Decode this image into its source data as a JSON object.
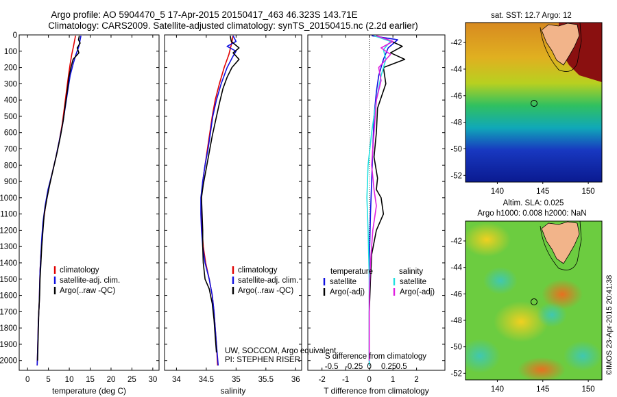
{
  "header": {
    "line1": "Argo profile: AO 5904470_5 17-Apr-2015 20150417_463 46.323S 143.71E",
    "line2": "Climatology: CARS2009. Satellite-adjusted climatology: synTS_20150415.nc (2.2d earlier)"
  },
  "colors": {
    "climatology": "#e00000",
    "satellite": "#1010e0",
    "argo": "#000000",
    "satellite_s": "#20e0e0",
    "argo_s": "#e020e0"
  },
  "footer": {
    "institution": "UW, SOCCOM, Argo equivalent",
    "pi": "PI: STEPHEN RISER",
    "stamp": "©IMOS 23-Apr-2015 20:41:38"
  },
  "chart_data": [
    {
      "type": "line",
      "id": "temperature",
      "xlabel": "temperature (deg C)",
      "ylabel": "",
      "xlim": [
        -2,
        31.5
      ],
      "ylim": [
        2060,
        0
      ],
      "xticks": [
        0,
        5,
        10,
        15,
        20,
        25,
        30
      ],
      "xticklabels": [
        "0",
        "5",
        "10",
        "15",
        "20",
        "25",
        "30"
      ],
      "yticks": [
        0,
        100,
        200,
        300,
        400,
        500,
        600,
        700,
        800,
        900,
        1000,
        1100,
        1200,
        1300,
        1400,
        1500,
        1600,
        1700,
        1800,
        1900,
        2000
      ],
      "legend": [
        "climatology",
        "satellite-adj. clim.",
        "Argo(..raw -QC)"
      ],
      "series": [
        {
          "name": "climatology",
          "color": "climatology",
          "points": [
            [
              11.5,
              5
            ],
            [
              11.3,
              30
            ],
            [
              11.0,
              70
            ],
            [
              10.6,
              120
            ],
            [
              10.2,
              180
            ],
            [
              9.8,
              250
            ],
            [
              9.3,
              350
            ],
            [
              8.8,
              450
            ],
            [
              8.3,
              550
            ],
            [
              7.6,
              650
            ],
            [
              6.8,
              750
            ],
            [
              5.9,
              850
            ],
            [
              5.0,
              950
            ],
            [
              4.3,
              1050
            ],
            [
              3.8,
              1150
            ],
            [
              3.5,
              1250
            ],
            [
              3.2,
              1350
            ],
            [
              3.0,
              1450
            ],
            [
              2.9,
              1550
            ],
            [
              2.8,
              1650
            ],
            [
              2.6,
              1750
            ],
            [
              2.5,
              1850
            ],
            [
              2.4,
              1950
            ],
            [
              2.3,
              2030
            ]
          ]
        },
        {
          "name": "satellite-adj. clim.",
          "color": "satellite",
          "points": [
            [
              12.8,
              5
            ],
            [
              12.6,
              30
            ],
            [
              12.3,
              70
            ],
            [
              11.6,
              120
            ],
            [
              10.9,
              180
            ],
            [
              10.2,
              250
            ],
            [
              9.6,
              350
            ],
            [
              9.0,
              450
            ],
            [
              8.4,
              550
            ],
            [
              7.6,
              650
            ],
            [
              6.8,
              750
            ],
            [
              5.9,
              850
            ],
            [
              4.9,
              950
            ],
            [
              4.2,
              1050
            ],
            [
              3.7,
              1150
            ],
            [
              3.4,
              1250
            ],
            [
              3.2,
              1350
            ],
            [
              3.0,
              1450
            ],
            [
              2.9,
              1550
            ],
            [
              2.8,
              1650
            ],
            [
              2.6,
              1750
            ],
            [
              2.5,
              1850
            ],
            [
              2.4,
              1950
            ],
            [
              2.3,
              2030
            ]
          ]
        },
        {
          "name": "Argo(..raw -QC)",
          "color": "argo",
          "points": [
            [
              12.4,
              5
            ],
            [
              12.2,
              30
            ],
            [
              12.6,
              50
            ],
            [
              11.9,
              80
            ],
            [
              12.3,
              110
            ],
            [
              10.9,
              150
            ],
            [
              10.4,
              200
            ],
            [
              9.9,
              260
            ],
            [
              9.6,
              330
            ],
            [
              9.1,
              420
            ],
            [
              8.6,
              520
            ],
            [
              7.9,
              620
            ],
            [
              7.1,
              720
            ],
            [
              6.2,
              820
            ],
            [
              5.3,
              920
            ],
            [
              4.6,
              1010
            ],
            [
              4.0,
              1100
            ],
            [
              3.7,
              1200
            ],
            [
              3.4,
              1300
            ],
            [
              3.2,
              1400
            ],
            [
              3.0,
              1500
            ],
            [
              2.9,
              1600
            ],
            [
              2.7,
              1700
            ],
            [
              2.6,
              1800
            ],
            [
              2.5,
              1900
            ],
            [
              2.4,
              2000
            ]
          ]
        }
      ]
    },
    {
      "type": "line",
      "id": "salinity",
      "xlabel": "salinity",
      "ylabel": "",
      "xlim": [
        33.8,
        36.1
      ],
      "ylim": [
        2060,
        0
      ],
      "xticks": [
        34,
        34.5,
        35,
        35.5,
        36
      ],
      "xticklabels": [
        "34",
        "34.5",
        "35",
        "35.5",
        "36"
      ],
      "legend": [
        "climatology",
        "satellite-adj. clim.",
        "Argo(..raw -QC)"
      ],
      "series": [
        {
          "name": "climatology",
          "color": "climatology",
          "points": [
            [
              34.95,
              5
            ],
            [
              34.92,
              60
            ],
            [
              34.88,
              120
            ],
            [
              34.8,
              200
            ],
            [
              34.72,
              300
            ],
            [
              34.65,
              400
            ],
            [
              34.6,
              500
            ],
            [
              34.56,
              600
            ],
            [
              34.52,
              700
            ],
            [
              34.48,
              800
            ],
            [
              34.44,
              900
            ],
            [
              34.42,
              1000
            ],
            [
              34.42,
              1100
            ],
            [
              34.43,
              1200
            ],
            [
              34.45,
              1300
            ],
            [
              34.49,
              1400
            ],
            [
              34.55,
              1500
            ],
            [
              34.6,
              1600
            ],
            [
              34.63,
              1700
            ],
            [
              34.65,
              1800
            ],
            [
              34.67,
              1900
            ],
            [
              34.69,
              2030
            ]
          ]
        },
        {
          "name": "satellite-adj. clim.",
          "color": "satellite",
          "points": [
            [
              34.95,
              5
            ],
            [
              35.0,
              40
            ],
            [
              34.85,
              70
            ],
            [
              35.0,
              100
            ],
            [
              34.95,
              130
            ],
            [
              34.85,
              200
            ],
            [
              34.75,
              300
            ],
            [
              34.67,
              400
            ],
            [
              34.61,
              500
            ],
            [
              34.57,
              600
            ],
            [
              34.53,
              700
            ],
            [
              34.48,
              800
            ],
            [
              34.44,
              900
            ],
            [
              34.41,
              1000
            ],
            [
              34.41,
              1100
            ],
            [
              34.42,
              1200
            ],
            [
              34.44,
              1300
            ],
            [
              34.48,
              1400
            ],
            [
              34.55,
              1500
            ],
            [
              34.6,
              1600
            ],
            [
              34.63,
              1700
            ],
            [
              34.65,
              1800
            ],
            [
              34.67,
              1900
            ],
            [
              34.7,
              2030
            ]
          ]
        },
        {
          "name": "Argo(..raw -QC)",
          "color": "argo",
          "points": [
            [
              34.9,
              5
            ],
            [
              34.92,
              40
            ],
            [
              35.05,
              80
            ],
            [
              34.95,
              110
            ],
            [
              35.05,
              150
            ],
            [
              34.93,
              200
            ],
            [
              34.85,
              260
            ],
            [
              34.78,
              330
            ],
            [
              34.72,
              420
            ],
            [
              34.66,
              520
            ],
            [
              34.6,
              620
            ],
            [
              34.55,
              720
            ],
            [
              34.5,
              820
            ],
            [
              34.45,
              920
            ],
            [
              34.42,
              1000
            ],
            [
              34.43,
              1100
            ],
            [
              34.44,
              1200
            ],
            [
              34.44,
              1300
            ],
            [
              34.45,
              1400
            ],
            [
              34.48,
              1500
            ],
            [
              34.55,
              1560
            ],
            [
              34.6,
              1650
            ],
            [
              34.63,
              1750
            ],
            [
              34.65,
              1850
            ],
            [
              34.67,
              1950
            ]
          ]
        }
      ]
    },
    {
      "type": "line",
      "id": "difference",
      "xlabel": "T difference from climatology",
      "xlabel_top": "S difference from climatology",
      "xlim": [
        -2.6,
        3.2
      ],
      "ylim": [
        2060,
        0
      ],
      "xticks": [
        -2,
        -1,
        0,
        1,
        2
      ],
      "xticklabels": [
        "-2",
        "-1",
        "0",
        "1",
        "2"
      ],
      "s_ticklabels": [
        "-0.5",
        "-0.25",
        "0",
        "0.25",
        "0.5"
      ],
      "legend_left_title": "temperature",
      "legend_right_title": "salinity",
      "legend": [
        "satellite",
        "Argo(-adj)",
        "satellite",
        "Argo(-adj)"
      ],
      "series": [
        {
          "name": "satellite",
          "color": "satellite",
          "points": [
            [
              0.1,
              5
            ],
            [
              1.2,
              30
            ],
            [
              0.8,
              80
            ],
            [
              0.6,
              150
            ],
            [
              0.4,
              250
            ],
            [
              0.3,
              350
            ],
            [
              0.2,
              500
            ],
            [
              0.15,
              700
            ],
            [
              0.1,
              900
            ],
            [
              0.05,
              1100
            ],
            [
              0.0,
              1400
            ],
            [
              0.0,
              2030
            ]
          ]
        },
        {
          "name": "Argo(-adj)",
          "color": "argo",
          "points": [
            [
              0.3,
              5
            ],
            [
              0.8,
              30
            ],
            [
              1.4,
              70
            ],
            [
              0.9,
              110
            ],
            [
              1.5,
              150
            ],
            [
              0.6,
              200
            ],
            [
              0.7,
              300
            ],
            [
              0.35,
              450
            ],
            [
              0.3,
              600
            ],
            [
              0.2,
              750
            ],
            [
              0.35,
              880
            ],
            [
              0.3,
              950
            ],
            [
              0.5,
              1000
            ],
            [
              0.6,
              1100
            ],
            [
              0.3,
              1200
            ],
            [
              0.1,
              1350
            ],
            [
              0.05,
              1500
            ],
            [
              0.0,
              1700
            ],
            [
              0.0,
              2000
            ]
          ]
        },
        {
          "name": "satellite",
          "color": "satellite_s",
          "points": [
            [
              0.2,
              5
            ],
            [
              0.9,
              40
            ],
            [
              0.6,
              90
            ],
            [
              0.7,
              150
            ],
            [
              0.5,
              250
            ],
            [
              0.3,
              400
            ],
            [
              0.1,
              600
            ],
            [
              -0.05,
              800
            ],
            [
              -0.1,
              1000
            ],
            [
              -0.05,
              1200
            ],
            [
              0.0,
              1500
            ],
            [
              0.0,
              2030
            ]
          ]
        },
        {
          "name": "Argo(-adj)",
          "color": "argo_s",
          "points": [
            [
              0.3,
              5
            ],
            [
              1.0,
              40
            ],
            [
              0.5,
              80
            ],
            [
              0.9,
              120
            ],
            [
              0.4,
              200
            ],
            [
              0.5,
              280
            ],
            [
              0.3,
              400
            ],
            [
              0.2,
              600
            ],
            [
              0.1,
              800
            ],
            [
              0.2,
              950
            ],
            [
              0.3,
              1050
            ],
            [
              0.15,
              1200
            ],
            [
              0.05,
              1400
            ],
            [
              0.0,
              1600
            ],
            [
              0.0,
              2000
            ]
          ]
        }
      ]
    },
    {
      "type": "heatmap",
      "id": "sst-map",
      "title": "sat. SST: 12.7  Argo: 12",
      "xlim": [
        136.5,
        151.5
      ],
      "ylim": [
        -52.5,
        -40.5
      ],
      "xticks": [
        140,
        145,
        150
      ],
      "xticklabels": [
        "140",
        "145",
        "150"
      ],
      "yticks": [
        -42,
        -44,
        -46,
        -48,
        -50,
        -52
      ],
      "yticklabels": [
        "-42",
        "-44",
        "-46",
        "-48",
        "-50",
        "-52"
      ],
      "profile_location": [
        143.71,
        -46.323
      ]
    },
    {
      "type": "heatmap",
      "id": "sla-map",
      "title": "Altim. SLA: 0.025",
      "subtitle": "Argo h1000: 0.008 h2000: NaN",
      "xlim": [
        136.5,
        151.5
      ],
      "ylim": [
        -52.5,
        -40.5
      ],
      "xticks": [
        140,
        145,
        150
      ],
      "xticklabels": [
        "140",
        "145",
        "150"
      ],
      "yticks": [
        -42,
        -44,
        -46,
        -48,
        -50,
        -52
      ],
      "yticklabels": [
        "-42",
        "-44",
        "-46",
        "-48",
        "-50",
        "-52"
      ],
      "profile_location": [
        143.71,
        -46.323
      ]
    }
  ]
}
